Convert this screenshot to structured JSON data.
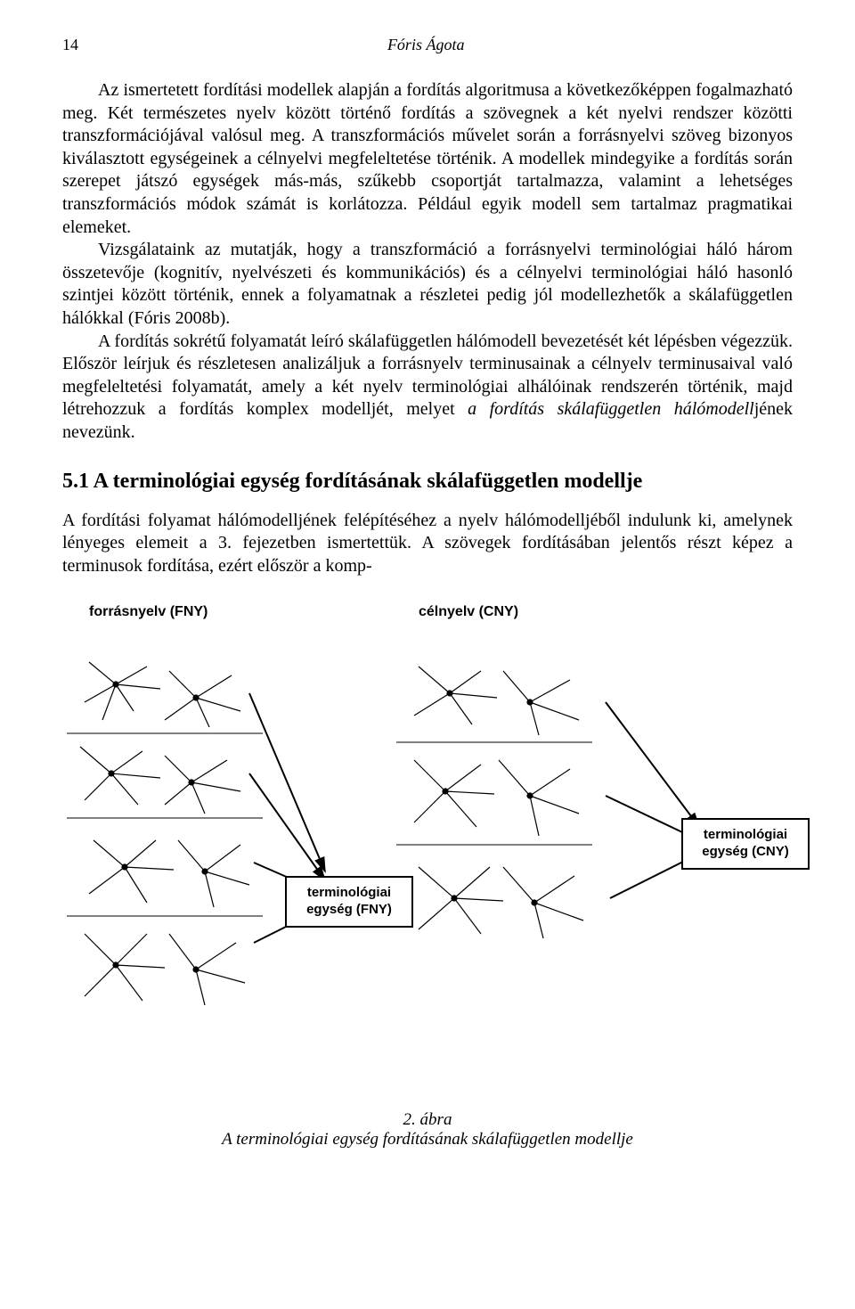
{
  "header": {
    "page_number": "14",
    "running_head": "Fóris Ágota"
  },
  "paragraphs": {
    "p1": "Az ismertetett fordítási modellek alapján a fordítás algoritmusa a következőképpen fogalmazható meg. Két természetes nyelv között történő fordítás a szövegnek a két nyelvi rendszer közötti transzformációjával valósul meg. A transzformációs művelet során a forrásnyelvi szöveg bizonyos kiválasztott egységeinek a célnyelvi megfeleltetése történik. A modellek mindegyike a fordítás során szerepet játszó egységek más-más, szűkebb csoportját tartalmazza, valamint a lehetséges transzformációs módok számát is korlátozza. Például egyik modell sem tartalmaz pragmatikai elemeket.",
    "p2": "Vizsgálataink az mutatják, hogy a transzformáció a forrásnyelvi terminológiai háló három összetevője (kognitív, nyelvészeti és kommunikációs) és a célnyelvi terminológiai háló hasonló szintjei között történik, ennek a folyamatnak a részletei pedig jól modellezhetők a skálafüggetlen hálókkal (Fóris 2008b).",
    "p3_a": "A fordítás sokrétű folyamatát leíró skálafüggetlen hálómodell bevezetését két lépésben végezzük. Először leírjuk és részletesen analizáljuk a forrásnyelv terminusainak a célnyelv terminusaival való megfeleltetési folyamatát, amely a két nyelv terminológiai alhálóinak rendszerén történik, majd létrehozzuk a fordítás komplex modelljét, melyet ",
    "p3_italic": "a fordítás skálafüggetlen hálómodell",
    "p3_b": "jének nevezünk."
  },
  "section": {
    "heading": "5.1 A terminológiai egység fordításának skálafüggetlen modellje",
    "p4": "A fordítási folyamat hálómodelljének felépítéséhez a nyelv hálómodelljéből indulunk ki, amelynek lényeges elemeit a 3. fejezetben ismertettük. A szövegek fordításában jelentős részt képez a terminusok fordítása, ezért először a komp-"
  },
  "figure": {
    "label_source": "forrásnyelv (FNY)",
    "label_target": "célnyelv (CNY)",
    "box_source": "terminológiai\negység (FNY)",
    "box_target": "terminológiai\negység (CNY)",
    "caption_num": "2. ábra",
    "caption_text": "A terminológiai egység fordításának skálafüggetlen modellje",
    "colors": {
      "stroke": "#000000",
      "background": "#ffffff"
    }
  }
}
